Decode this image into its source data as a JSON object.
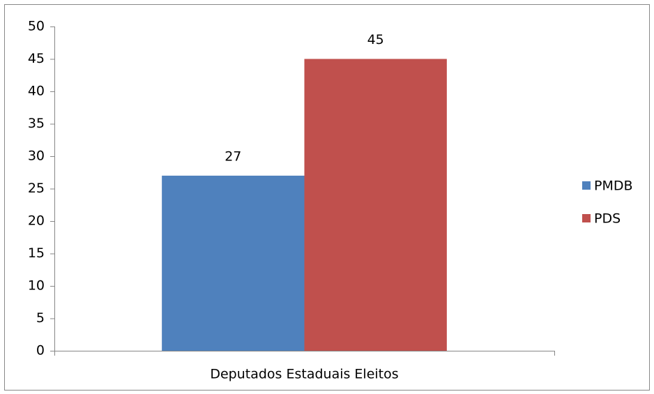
{
  "chart_data": {
    "type": "bar",
    "categories": [
      "Deputados Estaduais Eleitos"
    ],
    "series": [
      {
        "name": "PMDB",
        "color": "#4f81bd",
        "values": [
          27
        ]
      },
      {
        "name": "PDS",
        "color": "#c0504d",
        "values": [
          45
        ]
      }
    ],
    "ylim": [
      0,
      50
    ],
    "yticks": [
      0,
      5,
      10,
      15,
      20,
      25,
      30,
      35,
      40,
      45,
      50
    ],
    "grid": false,
    "legend": "right"
  }
}
